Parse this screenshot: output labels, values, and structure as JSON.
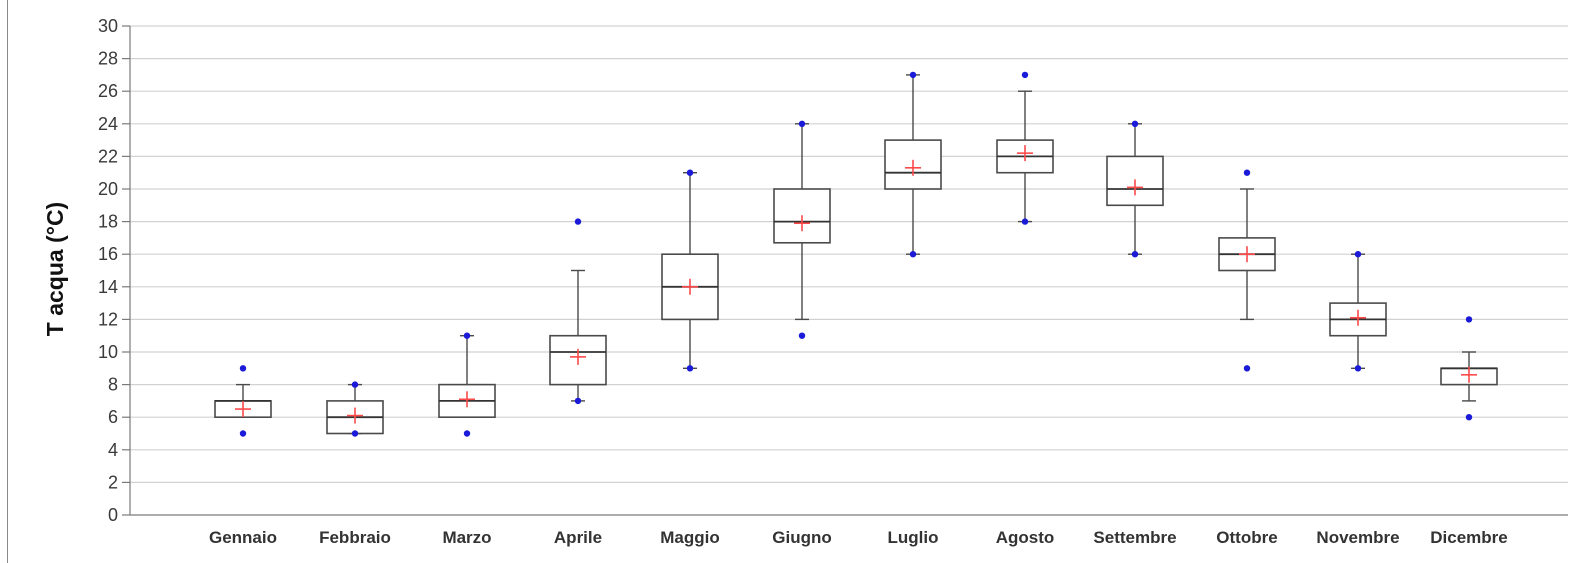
{
  "chart_data": {
    "type": "box",
    "title": "",
    "xlabel": "",
    "ylabel": "T acqua (°C)",
    "ylim": [
      0,
      30
    ],
    "yticks": [
      0,
      2,
      4,
      6,
      8,
      10,
      12,
      14,
      16,
      18,
      20,
      22,
      24,
      26,
      28,
      30
    ],
    "grid": true,
    "legend": "none",
    "colors": {
      "box_outline": "#4a4a4a",
      "median": "#333333",
      "mean": "#ff4a4a",
      "extremes": "#1a1ad8",
      "grid": "#d2d2d2"
    },
    "categories": [
      "Gennaio",
      "Febbraio",
      "Marzo",
      "Aprile",
      "Maggio",
      "Giugno",
      "Luglio",
      "Agosto",
      "Settembre",
      "Ottobre",
      "Novembre",
      "Dicembre"
    ],
    "boxes": [
      {
        "whisker_low": 6,
        "q1": 6,
        "median": 7,
        "q3": 7,
        "whisker_high": 8,
        "mean": 6.5,
        "min": 5,
        "max": 9
      },
      {
        "whisker_low": 5,
        "q1": 5,
        "median": 6,
        "q3": 7,
        "whisker_high": 8,
        "mean": 6.1,
        "min": 5,
        "max": 8
      },
      {
        "whisker_low": 6,
        "q1": 6,
        "median": 7,
        "q3": 8,
        "whisker_high": 11,
        "mean": 7.1,
        "min": 5,
        "max": 11
      },
      {
        "whisker_low": 7,
        "q1": 8,
        "median": 10,
        "q3": 11,
        "whisker_high": 15,
        "mean": 9.7,
        "min": 7,
        "max": 18
      },
      {
        "whisker_low": 9,
        "q1": 12,
        "median": 14,
        "q3": 16,
        "whisker_high": 21,
        "mean": 14,
        "min": 9,
        "max": 21
      },
      {
        "whisker_low": 12,
        "q1": 16.7,
        "median": 18,
        "q3": 20,
        "whisker_high": 24,
        "mean": 17.9,
        "min": 11,
        "max": 24
      },
      {
        "whisker_low": 16,
        "q1": 20,
        "median": 21,
        "q3": 23,
        "whisker_high": 27,
        "mean": 21.3,
        "min": 16,
        "max": 27
      },
      {
        "whisker_low": 18,
        "q1": 21,
        "median": 22,
        "q3": 23,
        "whisker_high": 26,
        "mean": 22.2,
        "min": 18,
        "max": 27
      },
      {
        "whisker_low": 16,
        "q1": 19,
        "median": 20,
        "q3": 22,
        "whisker_high": 24,
        "mean": 20.1,
        "min": 16,
        "max": 24
      },
      {
        "whisker_low": 12,
        "q1": 15,
        "median": 16,
        "q3": 17,
        "whisker_high": 20,
        "mean": 16,
        "min": 9,
        "max": 21
      },
      {
        "whisker_low": 9,
        "q1": 11,
        "median": 12,
        "q3": 13,
        "whisker_high": 16,
        "mean": 12.1,
        "min": 9,
        "max": 16
      },
      {
        "whisker_low": 7,
        "q1": 8,
        "median": 9,
        "q3": 9,
        "whisker_high": 10,
        "mean": 8.6,
        "min": 6,
        "max": 12
      }
    ]
  }
}
